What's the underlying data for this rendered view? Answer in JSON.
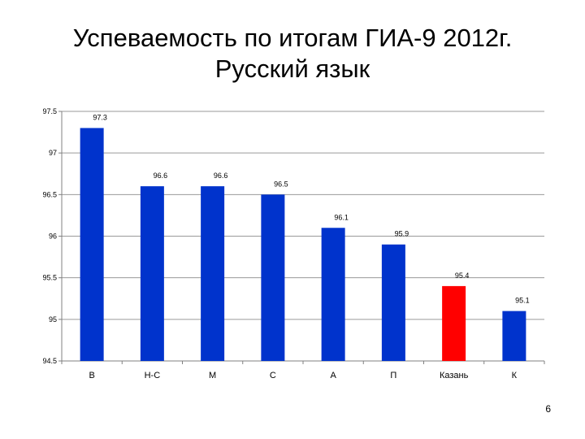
{
  "slide": {
    "title_line1": "Успеваемость по итогам ГИА-9  2012г.",
    "title_line2": "Русский язык",
    "page_number": "6"
  },
  "chart_data": {
    "type": "bar",
    "title": "Успеваемость по итогам ГИА-9  2012г. Русский язык",
    "categories": [
      "В",
      "Н-С",
      "М",
      "С",
      "А",
      "П",
      "Казань",
      "К"
    ],
    "values": [
      97.3,
      96.6,
      96.6,
      96.5,
      96.1,
      95.9,
      95.4,
      95.1
    ],
    "value_labels": [
      "97.3",
      "96.6",
      "96.6",
      "96.5",
      "96.1",
      "95.9",
      "95.4",
      "95.1"
    ],
    "bar_colors": [
      "#0033cc",
      "#0033cc",
      "#0033cc",
      "#0033cc",
      "#0033cc",
      "#0033cc",
      "#ff0000",
      "#0033cc"
    ],
    "ylim": [
      94.5,
      97.5
    ],
    "yticks": [
      94.5,
      95,
      95.5,
      96,
      96.5,
      97,
      97.5
    ],
    "ytick_labels": [
      "94.5",
      "95",
      "95.5",
      "96",
      "96.5",
      "97",
      "97.5"
    ],
    "grid": true,
    "legend": "none",
    "xlabel": "",
    "ylabel": ""
  }
}
